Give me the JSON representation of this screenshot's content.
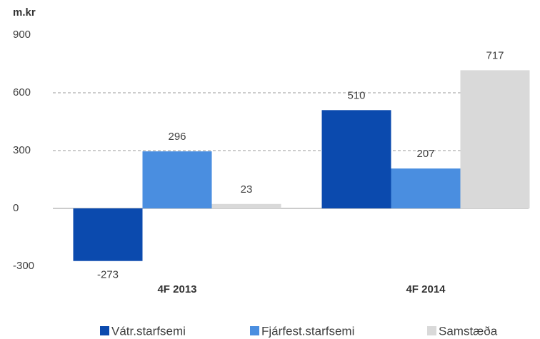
{
  "chart_data": {
    "type": "bar",
    "y_label": "m.kr",
    "categories": [
      "4F 2013",
      "4F 2014"
    ],
    "series": [
      {
        "name": "Vátr.starfsemi",
        "color": "#0b4aae",
        "values": [
          -273,
          510
        ]
      },
      {
        "name": "Fjárfest.starfsemi",
        "color": "#4a8ee0",
        "values": [
          296,
          207
        ]
      },
      {
        "name": "Samstæða",
        "color": "#d9d9d9",
        "values": [
          23,
          717
        ]
      }
    ],
    "ylim": [
      -300,
      900
    ],
    "yticks": [
      -300,
      0,
      300,
      600,
      900
    ],
    "grid": true,
    "legend": "bottom"
  }
}
